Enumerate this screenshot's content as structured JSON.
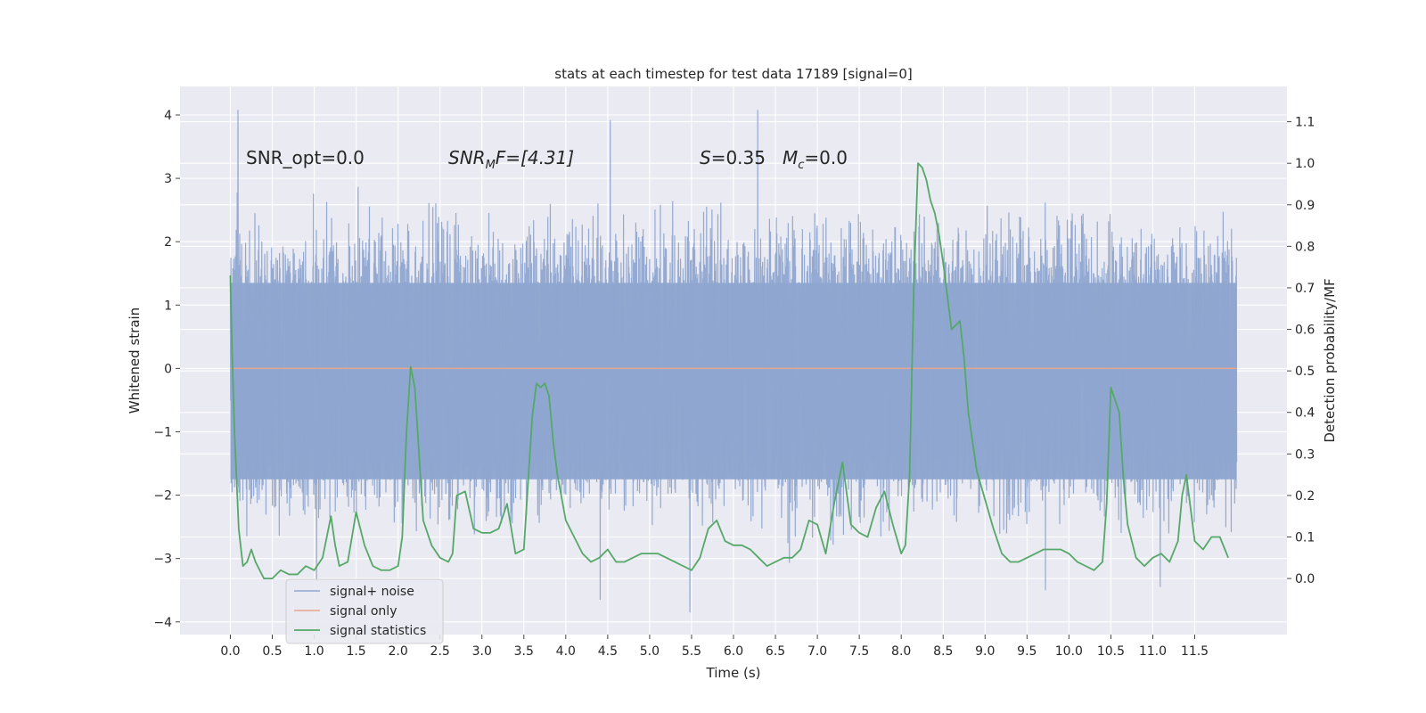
{
  "chart_data": {
    "type": "line",
    "title": "stats at each timestep for test data 17189 [signal=0]",
    "xlabel": "Time (s)",
    "ylabel": "Whitened strain",
    "y2label": "Detection probability/MF",
    "xlim": [
      -0.6,
      12.6
    ],
    "ylim": [
      -4.2,
      4.45
    ],
    "y2lim": [
      -0.135,
      1.185
    ],
    "xticks": [
      "0.0",
      "0.5",
      "1.0",
      "1.5",
      "2.0",
      "2.5",
      "3.0",
      "3.5",
      "4.0",
      "4.5",
      "5.0",
      "5.5",
      "6.0",
      "6.5",
      "7.0",
      "7.5",
      "8.0",
      "8.5",
      "9.0",
      "9.5",
      "10.0",
      "10.5",
      "11.0",
      "11.5"
    ],
    "yticks": [
      "4",
      "3",
      "2",
      "1",
      "0",
      "−1",
      "−2",
      "−3",
      "−4"
    ],
    "y2ticks": [
      "1.1",
      "1.0",
      "0.9",
      "0.8",
      "0.7",
      "0.6",
      "0.5",
      "0.4",
      "0.3",
      "0.2",
      "0.1",
      "0.0"
    ],
    "annotations": {
      "snr_opt": "SNR_opt=0.0",
      "snr_mf_main": "SNR",
      "snr_mf_sub": "M",
      "snr_mf_rest": "F=[4.31]",
      "s_label": "S",
      "s_value": "=0.35",
      "mc_main": "M",
      "mc_sub": "c",
      "mc_value": "=0.0"
    },
    "legend": {
      "position": "lower-left",
      "entries": [
        "signal+ noise",
        "signal only",
        "signal statistics"
      ]
    },
    "series": [
      {
        "name": "signal+ noise",
        "color": "#8fa6d0",
        "kind": "noise",
        "x_range": [
          0.0,
          12.0
        ],
        "samples": 4096,
        "core_range": [
          -1.75,
          1.35
        ],
        "max": 4.08,
        "min": -3.85
      },
      {
        "name": "signal only",
        "color": "#e8a58c",
        "x": [
          0.0,
          12.0
        ],
        "values": [
          0.0,
          0.0
        ]
      },
      {
        "name": "signal statistics",
        "color": "#55a868",
        "axis": "right",
        "x": [
          0.0,
          0.02,
          0.05,
          0.1,
          0.15,
          0.2,
          0.25,
          0.3,
          0.35,
          0.4,
          0.5,
          0.6,
          0.7,
          0.8,
          0.9,
          1.0,
          1.1,
          1.2,
          1.25,
          1.3,
          1.4,
          1.5,
          1.55,
          1.6,
          1.7,
          1.8,
          1.9,
          2.0,
          2.05,
          2.1,
          2.15,
          2.2,
          2.3,
          2.4,
          2.5,
          2.6,
          2.65,
          2.7,
          2.8,
          2.9,
          3.0,
          3.1,
          3.2,
          3.3,
          3.4,
          3.5,
          3.6,
          3.65,
          3.7,
          3.75,
          3.8,
          3.85,
          3.9,
          4.0,
          4.1,
          4.2,
          4.3,
          4.4,
          4.5,
          4.6,
          4.7,
          4.8,
          4.9,
          5.0,
          5.1,
          5.2,
          5.3,
          5.4,
          5.5,
          5.6,
          5.7,
          5.8,
          5.9,
          6.0,
          6.1,
          6.2,
          6.3,
          6.4,
          6.5,
          6.6,
          6.7,
          6.8,
          6.9,
          7.0,
          7.1,
          7.2,
          7.3,
          7.4,
          7.5,
          7.6,
          7.7,
          7.8,
          7.9,
          8.0,
          8.05,
          8.1,
          8.15,
          8.2,
          8.25,
          8.3,
          8.35,
          8.4,
          8.45,
          8.5,
          8.6,
          8.7,
          8.75,
          8.8,
          8.9,
          9.0,
          9.1,
          9.2,
          9.3,
          9.4,
          9.5,
          9.6,
          9.7,
          9.8,
          9.9,
          10.0,
          10.1,
          10.2,
          10.3,
          10.4,
          10.45,
          10.5,
          10.55,
          10.6,
          10.65,
          10.7,
          10.8,
          10.9,
          11.0,
          11.1,
          11.2,
          11.3,
          11.35,
          11.4,
          11.45,
          11.5,
          11.6,
          11.7,
          11.8,
          11.9
        ],
        "values": [
          0.73,
          0.55,
          0.35,
          0.12,
          0.03,
          0.04,
          0.07,
          0.04,
          0.02,
          0.0,
          0.0,
          0.02,
          0.01,
          0.01,
          0.03,
          0.02,
          0.05,
          0.15,
          0.08,
          0.03,
          0.04,
          0.16,
          0.12,
          0.08,
          0.03,
          0.02,
          0.02,
          0.03,
          0.1,
          0.35,
          0.51,
          0.46,
          0.14,
          0.08,
          0.05,
          0.04,
          0.06,
          0.2,
          0.21,
          0.12,
          0.11,
          0.11,
          0.12,
          0.18,
          0.06,
          0.07,
          0.39,
          0.47,
          0.46,
          0.47,
          0.44,
          0.33,
          0.25,
          0.14,
          0.1,
          0.06,
          0.04,
          0.05,
          0.07,
          0.04,
          0.04,
          0.05,
          0.06,
          0.06,
          0.06,
          0.05,
          0.04,
          0.03,
          0.02,
          0.05,
          0.12,
          0.14,
          0.09,
          0.08,
          0.08,
          0.07,
          0.05,
          0.03,
          0.04,
          0.05,
          0.05,
          0.07,
          0.14,
          0.13,
          0.06,
          0.18,
          0.28,
          0.13,
          0.11,
          0.1,
          0.17,
          0.21,
          0.13,
          0.06,
          0.08,
          0.25,
          0.7,
          1.0,
          0.99,
          0.96,
          0.91,
          0.88,
          0.83,
          0.76,
          0.6,
          0.62,
          0.53,
          0.4,
          0.26,
          0.19,
          0.12,
          0.06,
          0.04,
          0.04,
          0.05,
          0.06,
          0.07,
          0.07,
          0.07,
          0.06,
          0.04,
          0.03,
          0.02,
          0.04,
          0.18,
          0.46,
          0.43,
          0.4,
          0.24,
          0.13,
          0.05,
          0.03,
          0.05,
          0.06,
          0.04,
          0.09,
          0.2,
          0.25,
          0.17,
          0.09,
          0.07,
          0.1,
          0.1,
          0.05
        ]
      }
    ]
  },
  "colors": {
    "plot_bg": "#eaeaf2",
    "grid": "#ffffff",
    "text": "#262626"
  }
}
